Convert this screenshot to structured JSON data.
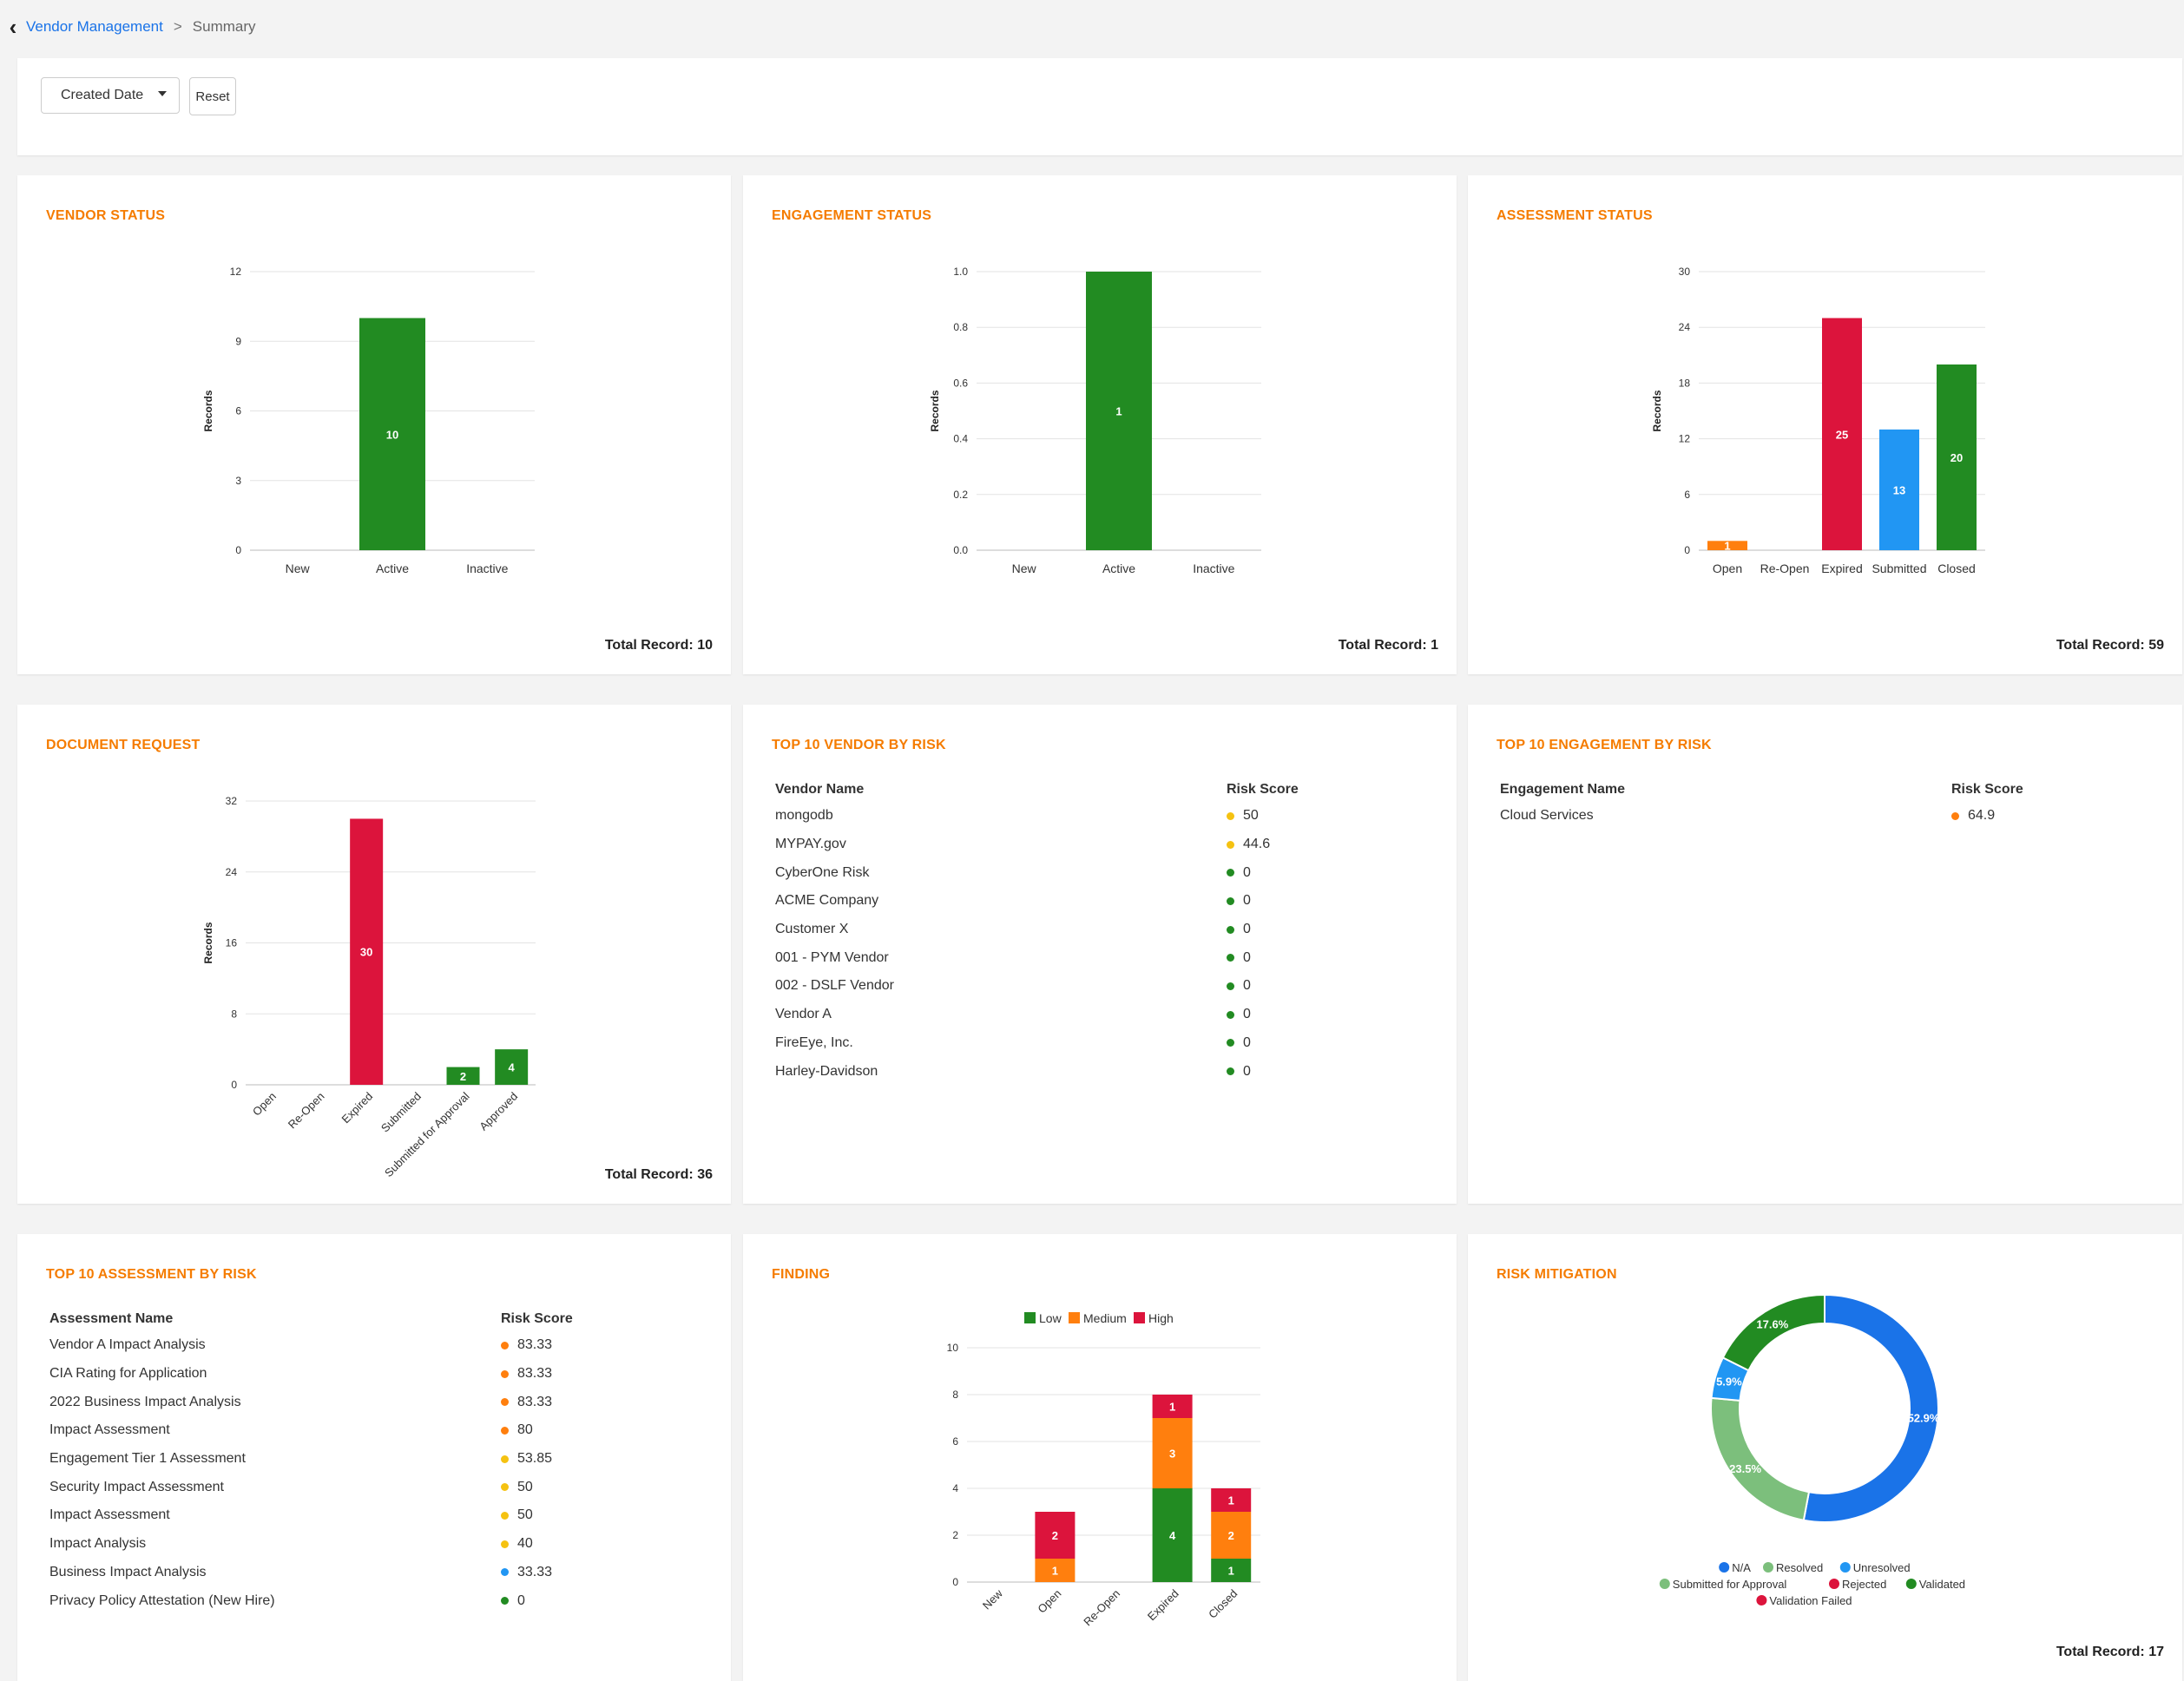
{
  "breadcrumb": {
    "parent": "Vendor Management",
    "separator": ">",
    "current": "Summary"
  },
  "filters": {
    "date_dropdown": "Created Date",
    "reset_label": "Reset"
  },
  "colors": {
    "green": "#228b22",
    "red": "#dc143c",
    "blue": "#2196f3",
    "orange": "#ff7f0e",
    "yellow": "#f5c211",
    "title_orange": "#f57c00"
  },
  "cards": {
    "vendor_status": {
      "title": "VENDOR STATUS",
      "total": "Total Record: 10"
    },
    "engagement_status": {
      "title": "ENGAGEMENT STATUS",
      "total": "Total Record: 1"
    },
    "assessment_status": {
      "title": "ASSESSMENT STATUS",
      "total": "Total Record: 59"
    },
    "document_request": {
      "title": "DOCUMENT REQUEST",
      "total": "Total Record: 36"
    },
    "top_vendor": {
      "title": "TOP 10 VENDOR BY RISK",
      "col_name": "Vendor Name",
      "col_score": "Risk Score",
      "rows": [
        {
          "name": "mongodb",
          "score": "50",
          "color": "#f5c211"
        },
        {
          "name": "MYPAY.gov",
          "score": "44.6",
          "color": "#f5c211"
        },
        {
          "name": "CyberOne Risk",
          "score": "0",
          "color": "#228b22"
        },
        {
          "name": "ACME Company",
          "score": "0",
          "color": "#228b22"
        },
        {
          "name": "Customer X",
          "score": "0",
          "color": "#228b22"
        },
        {
          "name": "001 - PYM Vendor",
          "score": "0",
          "color": "#228b22"
        },
        {
          "name": "002 - DSLF Vendor",
          "score": "0",
          "color": "#228b22"
        },
        {
          "name": "Vendor A",
          "score": "0",
          "color": "#228b22"
        },
        {
          "name": "FireEye, Inc.",
          "score": "0",
          "color": "#228b22"
        },
        {
          "name": "Harley-Davidson",
          "score": "0",
          "color": "#228b22"
        }
      ]
    },
    "top_engagement": {
      "title": "TOP 10 ENGAGEMENT BY RISK",
      "col_name": "Engagement Name",
      "col_score": "Risk Score",
      "rows": [
        {
          "name": "Cloud Services",
          "score": "64.9",
          "color": "#ff7f0e"
        }
      ]
    },
    "top_assessment": {
      "title": "TOP 10 ASSESSMENT BY RISK",
      "col_name": "Assessment Name",
      "col_score": "Risk Score",
      "rows": [
        {
          "name": "Vendor A Impact Analysis",
          "score": "83.33",
          "color": "#ff7f0e"
        },
        {
          "name": "CIA Rating for Application",
          "score": "83.33",
          "color": "#ff7f0e"
        },
        {
          "name": "2022 Business Impact Analysis",
          "score": "83.33",
          "color": "#ff7f0e"
        },
        {
          "name": "Impact Assessment",
          "score": "80",
          "color": "#ff7f0e"
        },
        {
          "name": "Engagement Tier 1 Assessment",
          "score": "53.85",
          "color": "#f5c211"
        },
        {
          "name": "Security Impact Assessment",
          "score": "50",
          "color": "#f5c211"
        },
        {
          "name": "Impact Assessment",
          "score": "50",
          "color": "#f5c211"
        },
        {
          "name": "Impact Analysis",
          "score": "40",
          "color": "#f5c211"
        },
        {
          "name": "Business Impact Analysis",
          "score": "33.33",
          "color": "#2196f3"
        },
        {
          "name": "Privacy Policy Attestation (New Hire)",
          "score": "0",
          "color": "#228b22"
        }
      ]
    },
    "finding": {
      "title": "FINDING"
    },
    "risk_mitigation": {
      "title": "RISK MITIGATION",
      "total": "Total Record: 17"
    }
  },
  "chart_data": [
    {
      "id": "vendor_status",
      "type": "bar",
      "categories": [
        "New",
        "Active",
        "Inactive"
      ],
      "values": [
        0,
        10,
        0
      ],
      "colors": [
        "#228b22",
        "#228b22",
        "#228b22"
      ],
      "ylabel": "Records",
      "ylim": [
        0,
        12
      ],
      "yticks": [
        "0",
        "3",
        "6",
        "9",
        "12"
      ],
      "grid": true
    },
    {
      "id": "engagement_status",
      "type": "bar",
      "categories": [
        "New",
        "Active",
        "Inactive"
      ],
      "values": [
        0,
        1,
        0
      ],
      "colors": [
        "#228b22",
        "#228b22",
        "#228b22"
      ],
      "ylabel": "Records",
      "ylim": [
        0,
        1
      ],
      "yticks": [
        "0.0",
        "0.2",
        "0.4",
        "0.6",
        "0.8",
        "1.0"
      ],
      "grid": true
    },
    {
      "id": "assessment_status",
      "type": "bar",
      "categories": [
        "Open",
        "Re-Open",
        "Expired",
        "Submitted",
        "Closed"
      ],
      "values": [
        1,
        0,
        25,
        13,
        20
      ],
      "colors": [
        "#ff7f0e",
        "#ff7f0e",
        "#dc143c",
        "#2196f3",
        "#228b22"
      ],
      "ylabel": "Records",
      "ylim": [
        0,
        30
      ],
      "yticks": [
        "0",
        "6",
        "12",
        "18",
        "24",
        "30"
      ],
      "grid": true
    },
    {
      "id": "document_request",
      "type": "bar",
      "categories": [
        "Open",
        "Re-Open",
        "Expired",
        "Submitted",
        "Submitted for Approval",
        "Approved"
      ],
      "values": [
        0,
        0,
        30,
        0,
        2,
        4
      ],
      "colors": [
        "#228b22",
        "#228b22",
        "#dc143c",
        "#2196f3",
        "#228b22",
        "#228b22"
      ],
      "ylabel": "Records",
      "ylim": [
        0,
        32
      ],
      "yticks": [
        "0",
        "8",
        "16",
        "24",
        "32"
      ],
      "grid": true
    },
    {
      "id": "finding",
      "type": "bar",
      "stacked": true,
      "categories": [
        "New",
        "Open",
        "Re-Open",
        "Expired",
        "Closed"
      ],
      "series": [
        {
          "name": "Low",
          "color": "#228b22",
          "values": [
            0,
            0,
            0,
            4,
            1
          ]
        },
        {
          "name": "Medium",
          "color": "#ff7f0e",
          "values": [
            0,
            1,
            0,
            3,
            2
          ]
        },
        {
          "name": "High",
          "color": "#dc143c",
          "values": [
            0,
            2,
            0,
            1,
            1
          ]
        }
      ],
      "ylim": [
        0,
        10
      ],
      "yticks": [
        "0",
        "2",
        "4",
        "6",
        "8",
        "10"
      ],
      "grid": true,
      "legend": "top"
    },
    {
      "id": "risk_mitigation",
      "type": "pie",
      "donut": true,
      "slices": [
        {
          "label": "N/A",
          "value": 52.9,
          "text": "52.9%",
          "color": "#1a73e8"
        },
        {
          "label": "Resolved",
          "value": 23.5,
          "text": "23.5%",
          "color": "#7cbf7c"
        },
        {
          "label": "Unresolved",
          "value": 5.9,
          "text": "5.9%",
          "color": "#2196f3"
        },
        {
          "label": "Submitted for Approval",
          "value": 0,
          "text": "",
          "color": "#7cbf7c"
        },
        {
          "label": "Rejected",
          "value": 0,
          "text": "",
          "color": "#dc143c"
        },
        {
          "label": "Validated",
          "value": 17.6,
          "text": "17.6%",
          "color": "#228b22"
        },
        {
          "label": "Validation Failed",
          "value": 0,
          "text": "",
          "color": "#dc143c"
        }
      ],
      "legend": "bottom"
    }
  ]
}
